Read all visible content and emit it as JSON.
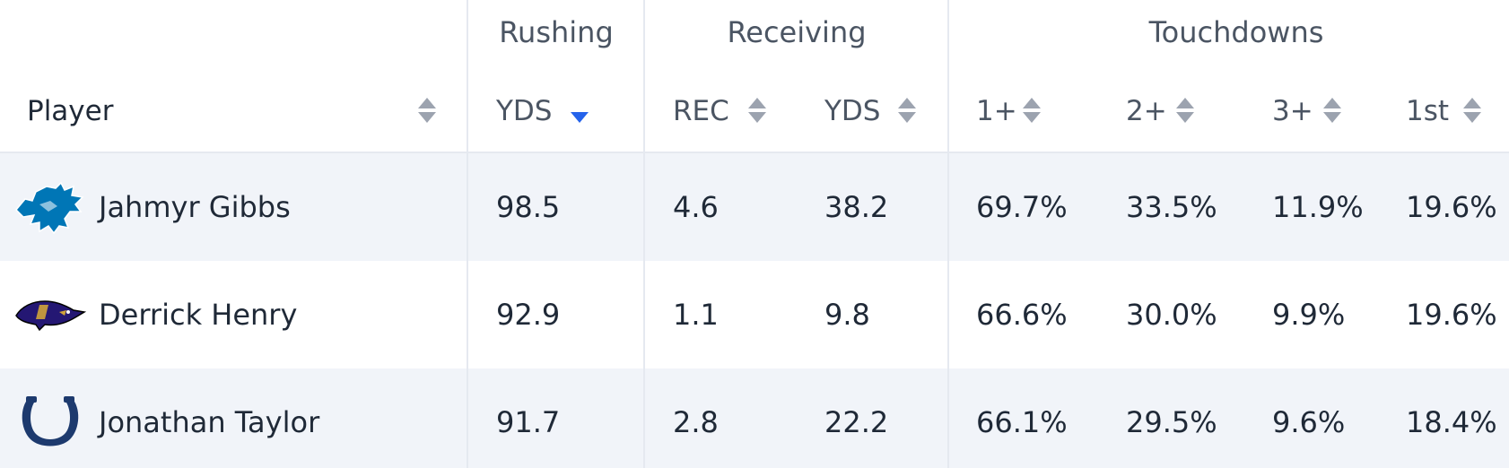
{
  "groups": {
    "rushing": "Rushing",
    "receiving": "Receiving",
    "touchdowns": "Touchdowns"
  },
  "columns": {
    "player": "Player",
    "rush_yds": "YDS",
    "rec": "REC",
    "rec_yds": "YDS",
    "td_1plus": "1+",
    "td_2plus": "2+",
    "td_3plus": "3+",
    "td_first": "1st"
  },
  "sort": {
    "active_column": "rush_yds",
    "direction": "descending"
  },
  "colors": {
    "accent": "#2563eb",
    "sort_icon": "#9ca3af",
    "row_alt": "#f1f4f9",
    "lions_blue": "#0076b6",
    "colts_navy": "#1d3a6e",
    "ravens_purple": "#241773"
  },
  "rows": [
    {
      "team_icon": "lions-logo-icon",
      "player": "Jahmyr Gibbs",
      "rush_yds": "98.5",
      "rec": "4.6",
      "rec_yds": "38.2",
      "td_1plus": "69.7%",
      "td_2plus": "33.5%",
      "td_3plus": "11.9%",
      "td_first": "19.6%"
    },
    {
      "team_icon": "ravens-logo-icon",
      "player": "Derrick Henry",
      "rush_yds": "92.9",
      "rec": "1.1",
      "rec_yds": "9.8",
      "td_1plus": "66.6%",
      "td_2plus": "30.0%",
      "td_3plus": "9.9%",
      "td_first": "19.6%"
    },
    {
      "team_icon": "colts-horseshoe-icon",
      "player": "Jonathan Taylor",
      "rush_yds": "91.7",
      "rec": "2.8",
      "rec_yds": "22.2",
      "td_1plus": "66.1%",
      "td_2plus": "29.5%",
      "td_3plus": "9.6%",
      "td_first": "18.4%"
    }
  ]
}
